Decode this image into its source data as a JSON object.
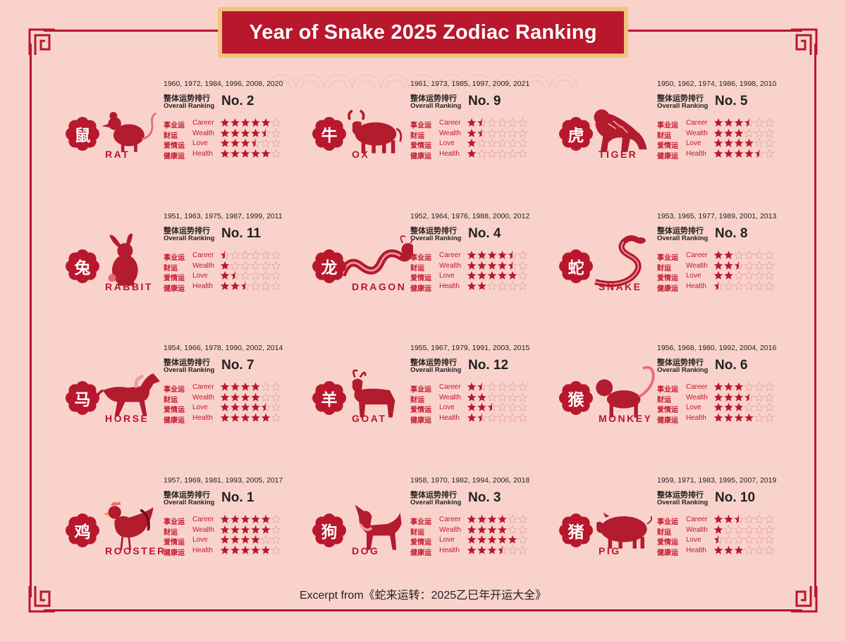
{
  "title": "Year of Snake 2025 Zodiac Ranking",
  "overall_label_cn": "整体运势排行",
  "overall_label_en": "Overall Ranking",
  "categories": [
    {
      "cn": "事业运",
      "en": "Career"
    },
    {
      "cn": "财运",
      "en": "Wealth"
    },
    {
      "cn": "爱情运",
      "en": "Love"
    },
    {
      "cn": "健康运",
      "en": "Health"
    }
  ],
  "colors": {
    "primary": "#b8172c",
    "gold": "#f4c27c",
    "background": "#f9d3cb",
    "animal": "#b31b2e",
    "star_empty": "#e8a8a8"
  },
  "zodiacs": [
    {
      "cn": "鼠",
      "en": "RAT",
      "years": "1960, 1972, 1984, 1996, 2008, 2020",
      "rank": "No. 2",
      "ratings": [
        5,
        4.5,
        3.5,
        5
      ],
      "icon": "rat-icon"
    },
    {
      "cn": "牛",
      "en": "OX",
      "years": "1961, 1973, 1985, 1997, 2009, 2021",
      "rank": "No. 9",
      "ratings": [
        1.5,
        1.5,
        1,
        1
      ],
      "icon": "ox-icon"
    },
    {
      "cn": "虎",
      "en": "TIGER",
      "years": "1950, 1962, 1974, 1986, 1998, 2010",
      "rank": "No. 5",
      "ratings": [
        3.5,
        3,
        4,
        4.5
      ],
      "icon": "tiger-icon"
    },
    {
      "cn": "兔",
      "en": "RABBIT",
      "years": "1951, 1963, 1975, 1987, 1999, 2011",
      "rank": "No. 11",
      "ratings": [
        0.5,
        1,
        1.5,
        2.5
      ],
      "icon": "rabbit-icon"
    },
    {
      "cn": "龙",
      "en": "DRAGON",
      "years": "1952, 1964, 1976, 1988, 2000, 2012",
      "rank": "No. 4",
      "ratings": [
        4.5,
        4.5,
        5,
        2
      ],
      "icon": "dragon-icon"
    },
    {
      "cn": "蛇",
      "en": "SNAKE",
      "years": "1953, 1965, 1977, 1989, 2001, 2013",
      "rank": "No. 8",
      "ratings": [
        2,
        2.5,
        2,
        0.5
      ],
      "icon": "snake-icon"
    },
    {
      "cn": "马",
      "en": "HORSE",
      "years": "1954, 1966, 1978, 1990, 2002, 2014",
      "rank": "No. 7",
      "ratings": [
        4,
        4,
        4.5,
        5
      ],
      "icon": "horse-icon"
    },
    {
      "cn": "羊",
      "en": "GOAT",
      "years": "1955, 1967, 1979, 1991, 2003, 2015",
      "rank": "No. 12",
      "ratings": [
        1.5,
        2,
        2.5,
        1.5
      ],
      "icon": "goat-icon"
    },
    {
      "cn": "猴",
      "en": "MONKEY",
      "years": "1956, 1968, 1980, 1992, 2004, 2016",
      "rank": "No. 6",
      "ratings": [
        3,
        3.5,
        3,
        4
      ],
      "icon": "monkey-icon"
    },
    {
      "cn": "鸡",
      "en": "ROOSTER",
      "years": "1957, 1969, 1981, 1993, 2005, 2017",
      "rank": "No. 1",
      "ratings": [
        5,
        5,
        4,
        5
      ],
      "icon": "rooster-icon"
    },
    {
      "cn": "狗",
      "en": "DOG",
      "years": "1958, 1970, 1982, 1994, 2006, 2018",
      "rank": "No. 3",
      "ratings": [
        4,
        4,
        5,
        3.5
      ],
      "icon": "dog-icon"
    },
    {
      "cn": "猪",
      "en": "PIG",
      "years": "1959, 1971, 1983, 1995, 2007, 2019",
      "rank": "No. 10",
      "ratings": [
        2.5,
        1,
        0.5,
        3
      ],
      "icon": "pig-icon"
    }
  ],
  "footer": "Excerpt from《蛇来运转：2025乙巳年开运大全》"
}
